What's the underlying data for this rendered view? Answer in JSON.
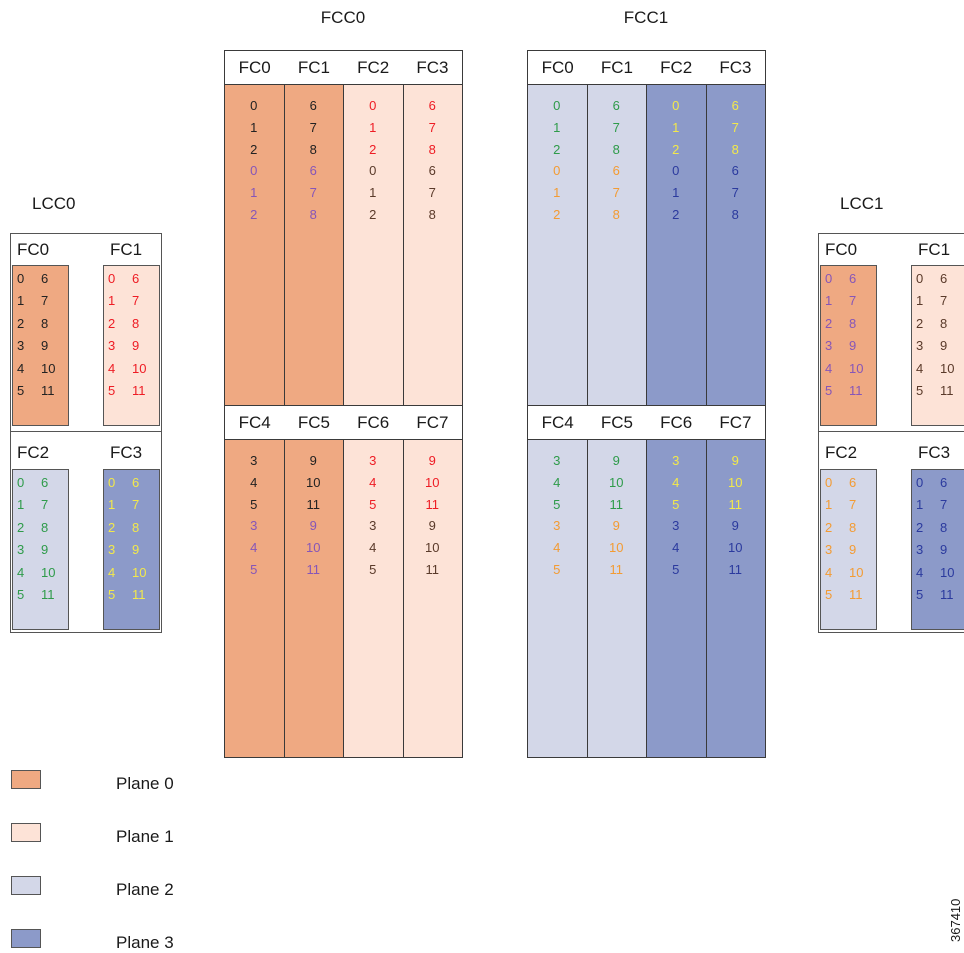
{
  "colors": {
    "plane0": "#efa982",
    "plane1": "#fde3d7",
    "plane2": "#d3d7e8",
    "plane3": "#8c9ac9",
    "num_plane0": "#222222",
    "num_plane1": "#ee1c24",
    "num_plane2": "#2e9b4a",
    "num_plane3": "#f3e94a",
    "num_mix_purple": "#8656b8",
    "num_mix_brown": "#5a3a2a",
    "num_mix_orange": "#f39b33",
    "num_mix_blue": "#2b3a9e"
  },
  "fcc": [
    {
      "title": "FCC0",
      "top_headers": [
        "FC0",
        "FC1",
        "FC2",
        "FC3"
      ],
      "bottom_headers": [
        "FC4",
        "FC5",
        "FC6",
        "FC7"
      ],
      "top_numbers": [
        [
          "0",
          "1",
          "2",
          "0",
          "1",
          "2"
        ],
        [
          "6",
          "7",
          "8",
          "6",
          "7",
          "8"
        ],
        [
          "0",
          "1",
          "2",
          "0",
          "1",
          "2"
        ],
        [
          "6",
          "7",
          "8",
          "6",
          "7",
          "8"
        ]
      ],
      "bottom_numbers": [
        [
          "3",
          "4",
          "5",
          "3",
          "4",
          "5"
        ],
        [
          "9",
          "10",
          "11",
          "9",
          "10",
          "11"
        ],
        [
          "3",
          "4",
          "5",
          "3",
          "4",
          "5"
        ],
        [
          "9",
          "10",
          "11",
          "9",
          "10",
          "11"
        ]
      ]
    },
    {
      "title": "FCC1",
      "top_headers": [
        "FC0",
        "FC1",
        "FC2",
        "FC3"
      ],
      "bottom_headers": [
        "FC4",
        "FC5",
        "FC6",
        "FC7"
      ],
      "top_numbers": [
        [
          "0",
          "1",
          "2",
          "0",
          "1",
          "2"
        ],
        [
          "6",
          "7",
          "8",
          "6",
          "7",
          "8"
        ],
        [
          "0",
          "1",
          "2",
          "0",
          "1",
          "2"
        ],
        [
          "6",
          "7",
          "8",
          "6",
          "7",
          "8"
        ]
      ],
      "bottom_numbers": [
        [
          "3",
          "4",
          "5",
          "3",
          "4",
          "5"
        ],
        [
          "9",
          "10",
          "11",
          "9",
          "10",
          "11"
        ],
        [
          "3",
          "4",
          "5",
          "3",
          "4",
          "5"
        ],
        [
          "9",
          "10",
          "11",
          "9",
          "10",
          "11"
        ]
      ]
    }
  ],
  "lcc": [
    {
      "title": "LCC0",
      "headers": [
        "FC0",
        "FC1",
        "FC2",
        "FC3"
      ],
      "left_numbers": [
        "0",
        "1",
        "2",
        "3",
        "4",
        "5"
      ],
      "right_numbers": [
        "6",
        "7",
        "8",
        "9",
        "10",
        "11"
      ]
    },
    {
      "title": "LCC1",
      "headers": [
        "FC0",
        "FC1",
        "FC2",
        "FC3"
      ],
      "left_numbers": [
        "0",
        "1",
        "2",
        "3",
        "4",
        "5"
      ],
      "right_numbers": [
        "6",
        "7",
        "8",
        "9",
        "10",
        "11"
      ]
    }
  ],
  "legend": [
    {
      "label": "Plane 0",
      "color": "#efa982"
    },
    {
      "label": "Plane 1",
      "color": "#fde3d7"
    },
    {
      "label": "Plane 2",
      "color": "#d3d7e8"
    },
    {
      "label": "Plane 3",
      "color": "#8c9ac9"
    }
  ],
  "figure_id": "367410"
}
